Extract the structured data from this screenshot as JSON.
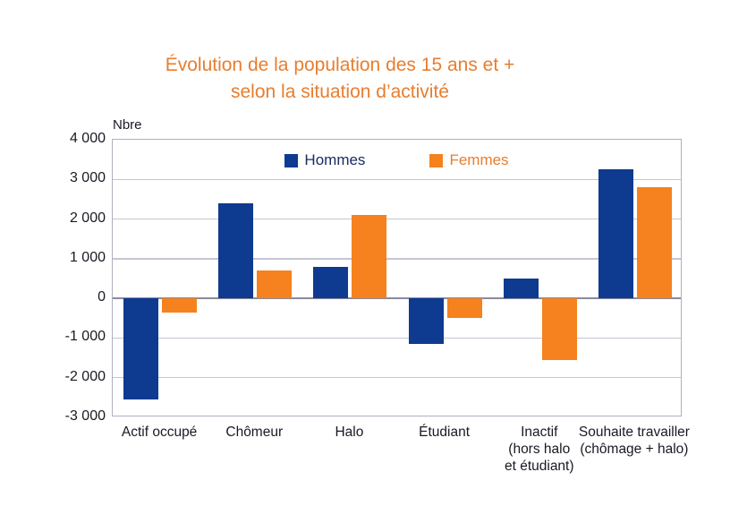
{
  "title": {
    "line1": "Évolution de la population des 15 ans et +",
    "line2": "selon la situation d’activité",
    "color": "#e87d2e"
  },
  "axis_unit_label": "Nbre",
  "legend": {
    "items": [
      {
        "label": "Hommes",
        "swatch_color": "#0e3a90",
        "text_color": "#1b2b66"
      },
      {
        "label": "Femmes",
        "swatch_color": "#f5821e",
        "text_color": "#e87d2e"
      }
    ]
  },
  "colors": {
    "hommes_bar": "#0e3a90",
    "femmes_bar": "#f5821e",
    "gridline": "#c6c6d2",
    "zero_line": "#8a8a9e",
    "plot_border": "#b0b0c0",
    "axis_text": "#191923",
    "background": "#ffffff"
  },
  "chart_data": {
    "type": "bar",
    "title": "Évolution de la population des 15 ans et + selon la situation d’activité",
    "xlabel": "",
    "ylabel": "Nbre",
    "categories": [
      "Actif occupé",
      "Chômeur",
      "Halo",
      "Étudiant",
      "Inactif (hors halo et étudiant)",
      "Souhaite travailler (chômage + halo)"
    ],
    "category_label_lines": [
      [
        "Actif occupé"
      ],
      [
        "Chômeur"
      ],
      [
        "Halo"
      ],
      [
        "Étudiant"
      ],
      [
        "Inactif",
        "(hors halo",
        "et étudiant)"
      ],
      [
        "Souhaite travailler",
        "(chômage + halo)"
      ]
    ],
    "series": [
      {
        "name": "Hommes",
        "color": "#0e3a90",
        "values": [
          -2550,
          2400,
          800,
          -1150,
          500,
          3250
        ]
      },
      {
        "name": "Femmes",
        "color": "#f5821e",
        "values": [
          -350,
          700,
          2100,
          -500,
          -1550,
          2800
        ]
      }
    ],
    "ylim": [
      -3000,
      4000
    ],
    "ytick_step": 1000,
    "ytick_labels": [
      "4 000",
      "3 000",
      "2 000",
      "1 000",
      "0",
      "-1 000",
      "-2 000",
      "-3 000"
    ],
    "grid": true,
    "legend_position": "top-inside"
  }
}
